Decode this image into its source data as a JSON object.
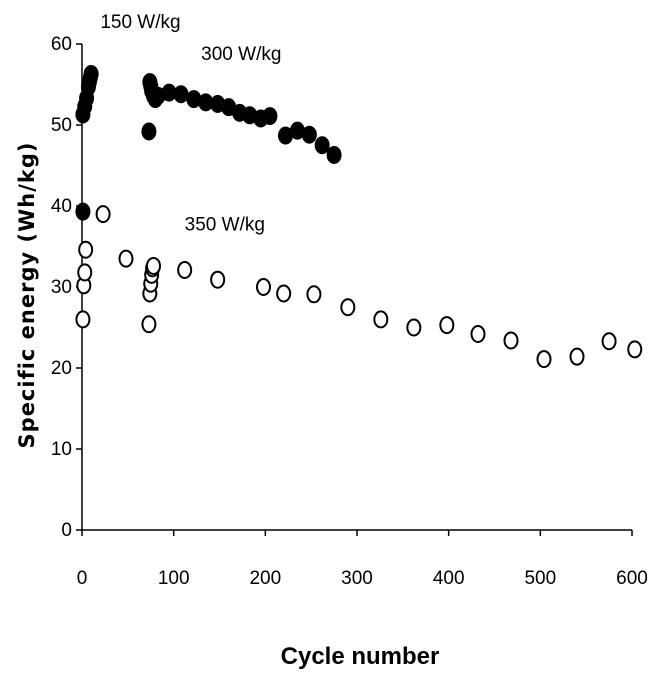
{
  "chart_data": {
    "type": "scatter",
    "title": "",
    "xlabel": "Cycle number",
    "ylabel": "Specific energy (Wh/kg)",
    "xlim": [
      0,
      600
    ],
    "ylim": [
      0,
      60
    ],
    "xticks": [
      "0",
      "100",
      "200",
      "300",
      "400",
      "500",
      "600"
    ],
    "yticks": [
      "0",
      "10",
      "20",
      "30",
      "40",
      "50",
      "60"
    ],
    "grid": false,
    "legend": "none",
    "annotations": [
      {
        "text": "150 W/kg",
        "x": 20,
        "y": 62
      },
      {
        "text": "300 W/kg",
        "x": 130,
        "y": 58
      },
      {
        "text": "350 W/kg",
        "x": 112,
        "y": 37
      }
    ],
    "series": [
      {
        "marker": "filled-circle",
        "x": [
          1,
          1,
          3,
          5,
          7,
          8,
          9,
          10,
          73,
          74,
          75,
          76,
          78,
          80,
          83,
          95,
          108,
          122,
          135,
          148,
          160,
          172,
          183,
          195,
          205,
          222,
          235,
          248,
          262,
          275
        ],
        "y": [
          39.3,
          51.3,
          52.3,
          53.3,
          54.7,
          55.3,
          55.8,
          56.3,
          49.2,
          55.3,
          54.8,
          54.2,
          53.6,
          53.2,
          53.6,
          54.0,
          53.8,
          53.2,
          52.8,
          52.6,
          52.2,
          51.5,
          51.2,
          50.8,
          51.1,
          48.7,
          49.3,
          48.8,
          47.5,
          46.3
        ]
      },
      {
        "marker": "open-circle",
        "x": [
          1,
          2,
          3,
          4,
          23,
          48,
          73,
          74,
          75,
          76,
          77,
          78,
          112,
          148,
          198,
          220,
          253,
          290,
          326,
          362,
          398,
          432,
          468,
          504,
          540,
          575,
          603
        ],
        "y": [
          26.0,
          30.2,
          31.8,
          34.6,
          39.0,
          33.5,
          25.4,
          29.2,
          30.4,
          31.5,
          32.3,
          32.6,
          32.1,
          30.9,
          30.0,
          29.2,
          29.1,
          27.5,
          26.0,
          25.0,
          25.3,
          24.2,
          23.4,
          21.1,
          21.4,
          23.3,
          22.3
        ]
      }
    ]
  }
}
